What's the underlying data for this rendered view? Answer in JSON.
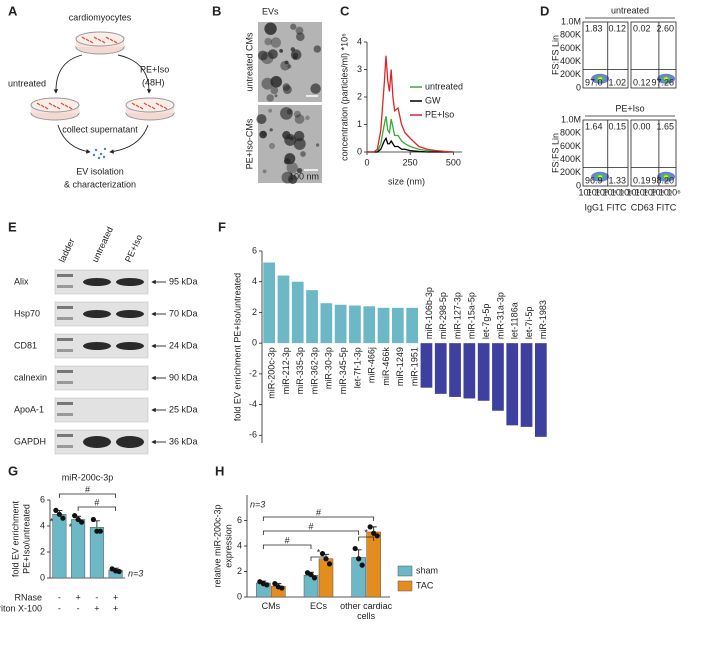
{
  "panel_a": {
    "label": "A",
    "top": "cardiomyocytes",
    "untreated": "untreated",
    "treated": "PE+Iso",
    "duration": "(48H)",
    "collect": "collect supernatant",
    "isolation": "EV isolation",
    "characterization": "& characterization"
  },
  "panel_b": {
    "label": "B",
    "header": "EVs",
    "rows": [
      "untreated CMs",
      "PE+Iso-CMs"
    ],
    "scale_bar": "100 nm"
  },
  "panel_d": {
    "label": "D",
    "conditions": [
      "untreated",
      "PE+Iso"
    ],
    "y_label": "FS:FS Lin",
    "x_labels": [
      "IgG1 FITC",
      "CD63 FITC"
    ],
    "y_ticks": [
      "1.0M",
      "800K",
      "600K",
      "400K",
      "200K",
      "0"
    ],
    "x_ticks": [
      "10¹",
      "10²",
      "10³",
      "10⁴",
      "10⁵",
      "10⁶"
    ],
    "plots": [
      {
        "quadrants": [
          "1.83",
          "0.12",
          "97.0",
          "1.02"
        ]
      },
      {
        "quadrants": [
          "0.02",
          "2.60",
          "0.12",
          "97.26"
        ]
      },
      {
        "quadrants": [
          "1.64",
          "0.15",
          "96.9",
          "1.33"
        ]
      },
      {
        "quadrants": [
          "0.00",
          "1.65",
          "0.19",
          "98.20"
        ]
      }
    ]
  },
  "panel_e": {
    "label": "E",
    "lanes": [
      "ladder",
      "untreated",
      "PE+Iso"
    ],
    "proteins": [
      {
        "name": "Alix",
        "size": "95 kDa"
      },
      {
        "name": "Hsp70",
        "size": "70 kDa"
      },
      {
        "name": "CD81",
        "size": "24 kDa"
      },
      {
        "name": "calnexin",
        "size": "90 kDa"
      },
      {
        "name": "ApoA-1",
        "size": "25 kDa"
      },
      {
        "name": "GAPDH",
        "size": "36 kDa"
      }
    ]
  },
  "chart_data": [
    {
      "label": "C",
      "type": "line",
      "x_label": "size (nm)",
      "y_label": "concentration (particles/ml) *10⁶",
      "x": [
        0,
        40,
        60,
        80,
        100,
        110,
        120,
        130,
        140,
        150,
        160,
        180,
        200,
        220,
        250,
        300,
        350,
        400,
        450,
        500
      ],
      "xlim": [
        0,
        550
      ],
      "xticks": [
        0,
        250,
        500
      ],
      "ylim": [
        0,
        4
      ],
      "yticks": [
        0,
        1,
        2,
        3,
        4
      ],
      "series": [
        {
          "name": "untreated",
          "color": "#3aaa35",
          "values": [
            0,
            0,
            0,
            0.3,
            1.0,
            1.3,
            0.8,
            0.7,
            1.2,
            0.9,
            0.6,
            0.6,
            0.4,
            0.3,
            0.2,
            0.1,
            0.05,
            0.02,
            0,
            0
          ]
        },
        {
          "name": "GW",
          "color": "#000000",
          "values": [
            0,
            0,
            0,
            0.1,
            0.4,
            0.5,
            0.3,
            0.3,
            0.4,
            0.3,
            0.2,
            0.2,
            0.1,
            0.1,
            0.05,
            0.02,
            0,
            0,
            0,
            0
          ]
        },
        {
          "name": "PE+Iso",
          "color": "#d9262b",
          "values": [
            0,
            0,
            0.1,
            0.8,
            2.5,
            3.5,
            2.6,
            2.2,
            3.0,
            2.0,
            1.5,
            1.6,
            1.0,
            0.7,
            0.5,
            0.2,
            0.1,
            0.05,
            0.02,
            0
          ]
        }
      ]
    },
    {
      "label": "F",
      "type": "bar",
      "y_label": "fold EV enrichment PE+Iso/untreated",
      "categories": [
        "miR-200c-3p",
        "miR-212-3p",
        "miR-335-3p",
        "miR-362-3p",
        "miR-30-3p",
        "miR-345-5p",
        "let-7f-1-3p",
        "miR-466j",
        "miR-466k",
        "miR-1249",
        "miR-1951",
        "miR-106b-3p",
        "miR-298-5p",
        "miR-127-3p",
        "miR-15a-5p",
        "let-7g-5p",
        "miR-31a-3p",
        "let-1186a",
        "let-7i-5p",
        "miR-1983"
      ],
      "values": [
        5.25,
        4.4,
        4.0,
        3.45,
        2.6,
        2.5,
        2.45,
        2.4,
        2.3,
        2.3,
        2.3,
        -2.9,
        -3.3,
        -3.5,
        -3.6,
        -3.75,
        -4.4,
        -5.35,
        -5.45,
        -6.1
      ],
      "color": "#6cb8c6",
      "negative_color": "#3e40a0",
      "ylim": [
        -6.5,
        6
      ],
      "yticks": [
        -6,
        -4,
        -2,
        0,
        2,
        4,
        6
      ]
    },
    {
      "label": "G",
      "type": "bar",
      "title": "miR-200c-3p",
      "y_label": [
        "fold EV enrichment",
        "PE+Iso/untreated"
      ],
      "values": [
        4.9,
        4.5,
        3.9,
        0.6
      ],
      "errors": [
        0.3,
        0.25,
        0.5,
        0.15
      ],
      "points": [
        [
          5.2,
          4.9,
          4.6
        ],
        [
          4.8,
          4.5,
          4.3
        ],
        [
          4.5,
          3.6,
          3.6
        ],
        [
          0.7,
          0.55,
          0.5
        ]
      ],
      "color": "#6cb8c6",
      "ylim": [
        0,
        6
      ],
      "yticks": [
        0,
        2,
        4,
        6
      ],
      "rows": [
        {
          "label": "RNase",
          "values": [
            "-",
            "+",
            "-",
            "+"
          ]
        },
        {
          "label": "Triton X-100",
          "values": [
            "-",
            "-",
            "+",
            "+"
          ]
        }
      ],
      "stars": [
        "*",
        "*"
      ],
      "hashes": [
        "#",
        "#"
      ],
      "note": "n=3"
    },
    {
      "label": "H",
      "type": "grouped_bar",
      "y_label": [
        "relative miR-200c-3p",
        "expression"
      ],
      "categories": [
        "CMs",
        "ECs",
        "other cardiac cells"
      ],
      "series": [
        {
          "name": "sham",
          "color": "#6cb8c6",
          "values": [
            1.1,
            1.7,
            3.1
          ],
          "errors": [
            0.15,
            0.25,
            0.6
          ],
          "points": [
            [
              1.2,
              1.05,
              0.95
            ],
            [
              1.9,
              1.75,
              1.5
            ],
            [
              3.8,
              3.0,
              2.5
            ]
          ]
        },
        {
          "name": "TAC",
          "color": "#e58c1f",
          "values": [
            0.85,
            3.0,
            5.1
          ],
          "errors": [
            0.2,
            0.35,
            0.4
          ],
          "points": [
            [
              1.05,
              0.8,
              0.7
            ],
            [
              3.4,
              3.0,
              2.6
            ],
            [
              5.5,
              5.0,
              4.8
            ]
          ]
        }
      ],
      "ylim": [
        0,
        8
      ],
      "yticks": [
        0,
        2,
        4,
        6
      ],
      "hashes": [
        "#",
        "#",
        "#"
      ],
      "stars": [
        "*",
        "*"
      ],
      "note": "n=3"
    }
  ]
}
